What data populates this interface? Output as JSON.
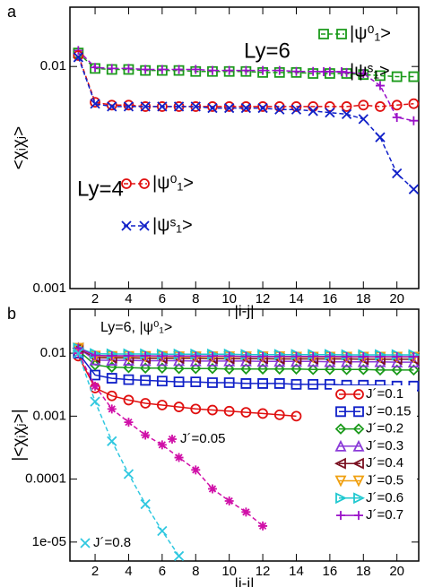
{
  "chart_data": [
    {
      "type": "line",
      "panel_label": "a",
      "xlabel": "|i-j|",
      "ylabel": "<χᵢχⱼ>",
      "yscale": "log",
      "xlim": [
        0.5,
        21.3
      ],
      "xticks": [
        2,
        4,
        6,
        8,
        10,
        12,
        14,
        16,
        18,
        20
      ],
      "ylim": [
        0.001,
        0.0185
      ],
      "yticks": [
        0.001,
        0.01
      ],
      "annotations": [
        "Ly=6",
        "Ly=4"
      ],
      "x": [
        1,
        2,
        3,
        4,
        5,
        6,
        7,
        8,
        9,
        10,
        11,
        12,
        13,
        14,
        15,
        16,
        17,
        18,
        19,
        20,
        21
      ],
      "series": [
        {
          "name": "|ψ⁰₁>",
          "color": "#1a9a1a",
          "marker": "square",
          "line_style": "dashed",
          "values": [
            0.0115,
            0.0098,
            0.0097,
            0.0097,
            0.0096,
            0.0096,
            0.0096,
            0.0095,
            0.0095,
            0.0095,
            0.0095,
            0.0094,
            0.0094,
            0.0094,
            0.0093,
            0.0093,
            0.0093,
            0.0092,
            0.0091,
            0.009,
            0.009
          ]
        },
        {
          "name": "|ψˢ₁>",
          "color": "#9a10c8",
          "marker": "plus",
          "line_style": "dashed",
          "values": [
            0.0118,
            0.0099,
            0.0098,
            0.0098,
            0.0097,
            0.0097,
            0.0097,
            0.0097,
            0.0096,
            0.0096,
            0.0096,
            0.0096,
            0.0096,
            0.0095,
            0.0095,
            0.0095,
            0.0094,
            0.0093,
            0.0082,
            0.0059,
            0.0057
          ]
        },
        {
          "name": "|ψ⁰₁>",
          "color": "#e01010",
          "marker": "circle",
          "line_style": "dashed",
          "values": [
            0.0112,
            0.0069,
            0.0067,
            0.0067,
            0.0066,
            0.0066,
            0.0066,
            0.0066,
            0.0066,
            0.0066,
            0.0066,
            0.0066,
            0.0066,
            0.0066,
            0.0066,
            0.0066,
            0.0066,
            0.0067,
            0.0066,
            0.0067,
            0.0068
          ]
        },
        {
          "name": "|ψˢ₁>",
          "color": "#1020c8",
          "marker": "x",
          "line_style": "dashed",
          "values": [
            0.011,
            0.0068,
            0.0066,
            0.0066,
            0.0066,
            0.0066,
            0.0066,
            0.0066,
            0.0065,
            0.0065,
            0.0065,
            0.0065,
            0.0064,
            0.0064,
            0.0063,
            0.0062,
            0.0061,
            0.0058,
            0.0048,
            0.0033,
            0.0028
          ]
        }
      ]
    },
    {
      "type": "line",
      "panel_label": "b",
      "xlabel": "|i-j|",
      "ylabel": "|<χᵢχⱼ>|",
      "yscale": "log",
      "xlim": [
        0.5,
        21.3
      ],
      "xticks": [
        2,
        4,
        6,
        8,
        10,
        12,
        14,
        16,
        18,
        20
      ],
      "ylim": [
        5e-06,
        0.05
      ],
      "yticks": [
        {
          "value": 1e-05,
          "label": "1e-05"
        },
        0.0001,
        0.001,
        0.01
      ],
      "annotations": [
        "Ly=6, |ψ⁰₁>"
      ],
      "x": [
        1,
        2,
        3,
        4,
        5,
        6,
        7,
        8,
        9,
        10,
        11,
        12,
        13,
        14,
        15,
        16,
        17,
        18,
        19,
        20,
        21
      ],
      "series": [
        {
          "name": "J´=0.1",
          "color": "#e01010",
          "marker": "circle",
          "line_style": "solid",
          "values": [
            0.009,
            0.0028,
            0.0021,
            0.0018,
            0.0016,
            0.0015,
            0.0014,
            0.0013,
            0.00125,
            0.0012,
            0.00115,
            0.0011,
            0.00105,
            0.001,
            null,
            null,
            null,
            null,
            null,
            null,
            null
          ]
        },
        {
          "name": "J´=0.15",
          "color": "#1020c8",
          "marker": "square",
          "line_style": "solid",
          "values": [
            0.01,
            0.0045,
            0.004,
            0.0038,
            0.0037,
            0.0036,
            0.0035,
            0.0035,
            0.0034,
            0.0034,
            0.0033,
            0.0033,
            0.0033,
            0.0032,
            0.0032,
            0.0032,
            0.0031,
            0.0031,
            0.0031,
            0.003,
            0.003
          ]
        },
        {
          "name": "J´=0.2",
          "color": "#1a9a1a",
          "marker": "diamond",
          "line_style": "solid",
          "values": [
            0.011,
            0.0065,
            0.006,
            0.0059,
            0.0058,
            0.0058,
            0.0057,
            0.0057,
            0.0057,
            0.0056,
            0.0056,
            0.0056,
            0.0056,
            0.0056,
            0.0055,
            0.0055,
            0.0055,
            0.0055,
            0.0054,
            0.0054,
            0.0054
          ]
        },
        {
          "name": "J´=0.3",
          "color": "#8a3ad8",
          "marker": "tri-up",
          "line_style": "solid",
          "values": [
            0.012,
            0.0078,
            0.0077,
            0.0077,
            0.0076,
            0.0076,
            0.0076,
            0.0075,
            0.0075,
            0.0075,
            0.0075,
            0.0074,
            0.0074,
            0.0074,
            0.0074,
            0.0073,
            0.0073,
            0.0073,
            0.0073,
            0.0072,
            0.0072
          ]
        },
        {
          "name": "J´=0.4",
          "color": "#7a1020",
          "marker": "tri-left",
          "line_style": "solid",
          "values": [
            0.012,
            0.0085,
            0.0084,
            0.0084,
            0.0083,
            0.0083,
            0.0083,
            0.0083,
            0.0082,
            0.0082,
            0.0082,
            0.0082,
            0.0081,
            0.0081,
            0.0081,
            0.0081,
            0.0081,
            0.008,
            0.008,
            0.008,
            0.008
          ]
        },
        {
          "name": "J´=0.5",
          "color": "#f0a010",
          "marker": "tri-down",
          "line_style": "solid",
          "values": [
            0.012,
            0.009,
            0.0089,
            0.0089,
            0.0089,
            0.0089,
            0.0088,
            0.0088,
            0.0088,
            0.0088,
            0.0088,
            0.0088,
            0.0088,
            0.0087,
            0.0087,
            0.0087,
            0.0087,
            0.0087,
            0.0087,
            0.0087,
            0.0087
          ]
        },
        {
          "name": "J´=0.6",
          "color": "#20c8d0",
          "marker": "tri-right",
          "line_style": "solid",
          "values": [
            0.012,
            0.0098,
            0.0097,
            0.0097,
            0.0097,
            0.0096,
            0.0096,
            0.0096,
            0.0096,
            0.0096,
            0.0095,
            0.0095,
            0.0095,
            0.0095,
            0.0095,
            0.0095,
            0.0094,
            0.0094,
            0.0094,
            0.0094,
            0.0094
          ]
        },
        {
          "name": "J´=0.7",
          "color": "#9a10c8",
          "marker": "plus",
          "line_style": "solid",
          "values": [
            0.012,
            0.0092,
            0.0091,
            0.0091,
            0.0091,
            0.009,
            0.009,
            0.009,
            0.009,
            0.009,
            0.0089,
            0.0089,
            0.0089,
            0.0089,
            0.0089,
            0.0089,
            0.0088,
            0.0088,
            0.0088,
            0.0088,
            0.0088
          ]
        },
        {
          "name": "J´=0.05",
          "color": "#d010a8",
          "marker": "asterisk",
          "line_style": "dashed",
          "values": [
            0.01,
            0.003,
            0.0013,
            0.0008,
            0.0005,
            0.00035,
            0.00022,
            0.00014,
            7e-05,
            4.5e-05,
            3e-05,
            1.8e-05,
            null,
            null,
            null,
            null,
            null,
            null,
            null,
            null,
            null
          ]
        },
        {
          "name": "J´=0.8",
          "color": "#30c8e0",
          "marker": "x",
          "line_style": "dashed",
          "values": [
            0.01,
            0.0017,
            0.0004,
            0.00012,
            4e-05,
            1.5e-05,
            6e-06,
            null,
            null,
            null,
            null,
            null,
            null,
            null,
            null,
            null,
            null,
            null,
            null,
            null,
            null
          ]
        }
      ]
    }
  ]
}
